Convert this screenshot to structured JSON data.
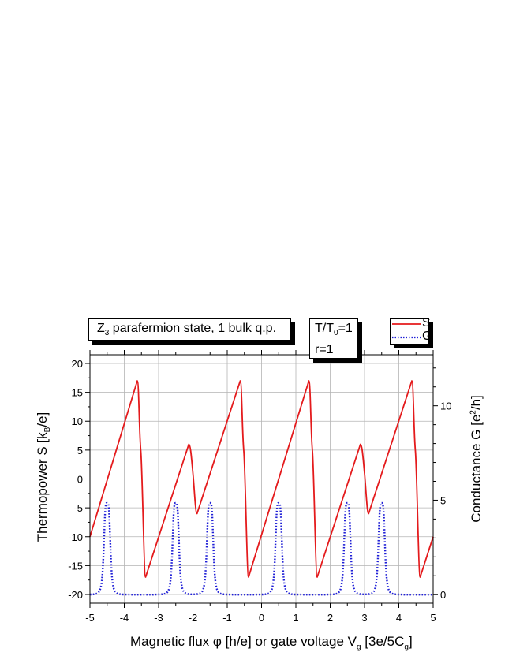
{
  "chart_data": {
    "type": "line",
    "title_box": {
      "prefix": "Z",
      "sub": "3",
      "suffix": " parafermion state, 1 bulk q.p."
    },
    "params_box": {
      "line1_a": "T/T",
      "line1_sub": "0",
      "line1_b": "=1",
      "line2": "r=1"
    },
    "xlabel": {
      "a": "Magnetic flux ",
      "phi": "φ",
      "b": " [h/e] or gate voltage V",
      "sub_g": "g",
      "c": " [",
      "italic_e": "3",
      "d": "e/5C",
      "sub_g2": "g",
      "e": "]"
    },
    "ylabel_left": {
      "a": "Thermopower S [k",
      "sub": "B",
      "b": "/e]"
    },
    "ylabel_right": {
      "a": "Conductance G [e",
      "sup": "2",
      "b": "/h]"
    },
    "xlim": [
      -5,
      5
    ],
    "ylim_left": [
      -21.5,
      21.5
    ],
    "ylim_right": [
      -0.45,
      12.7
    ],
    "x_ticks": [
      -5,
      -4,
      -3,
      -2,
      -1,
      0,
      1,
      2,
      3,
      4,
      5
    ],
    "x_tick_labels": [
      "-5",
      "-4",
      "-3",
      "-2",
      "-1",
      "0",
      "1",
      "2",
      "3",
      "4",
      "5"
    ],
    "y_left_ticks": [
      -20,
      -15,
      -10,
      -5,
      0,
      5,
      10,
      15,
      20
    ],
    "y_left_tick_labels": [
      "-20",
      "-15",
      "-10",
      "-5",
      "0",
      "5",
      "10",
      "15",
      "20"
    ],
    "y_right_ticks": [
      0,
      5,
      10
    ],
    "y_right_tick_labels": [
      "0",
      "5",
      "10"
    ],
    "grid": true,
    "legend_position": "top-right",
    "series": [
      {
        "name": "S",
        "axis": "left",
        "color": "#e41a1c",
        "style": "solid",
        "points": [
          [
            -5.0,
            -10.0
          ],
          [
            -3.62,
            17.0
          ],
          [
            -3.52,
            5.0
          ],
          [
            -3.38,
            -17.0
          ],
          [
            -2.12,
            6.0
          ],
          [
            -2.0,
            1.0
          ],
          [
            -1.88,
            -6.0
          ],
          [
            -0.62,
            17.0
          ],
          [
            -0.52,
            5.0
          ],
          [
            -0.38,
            -17.0
          ],
          [
            1.38,
            17.0
          ],
          [
            1.48,
            5.0
          ],
          [
            1.62,
            -17.0
          ],
          [
            2.88,
            6.0
          ],
          [
            3.0,
            1.0
          ],
          [
            3.12,
            -6.0
          ],
          [
            4.38,
            17.0
          ],
          [
            4.48,
            5.0
          ],
          [
            4.62,
            -17.0
          ],
          [
            5.0,
            -10.0
          ]
        ]
      },
      {
        "name": "G",
        "axis": "right",
        "color": "#1f1fd6",
        "style": "dotted",
        "peak_height": 4.85,
        "peak_width": 0.1,
        "peak_centers": [
          -4.5,
          -2.5,
          -1.5,
          0.5,
          2.5,
          3.5
        ]
      }
    ]
  }
}
